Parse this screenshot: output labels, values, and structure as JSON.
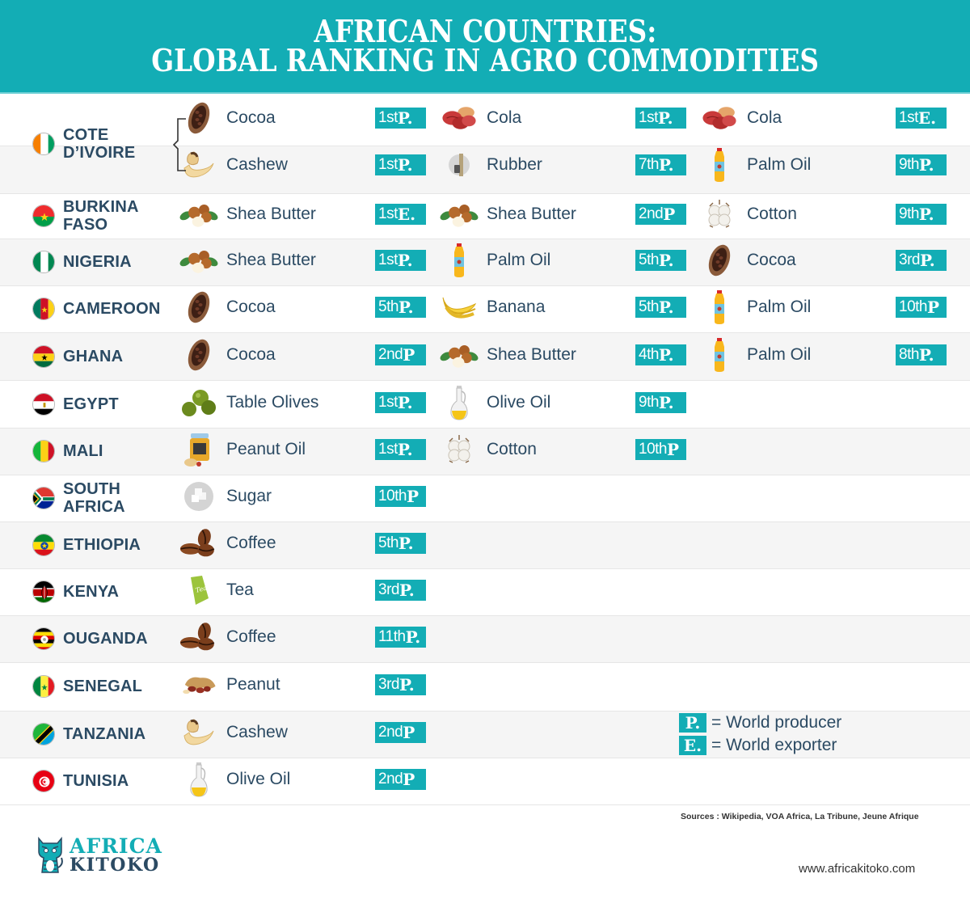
{
  "header": {
    "title_line1": "AFRICAN COUNTRIES:",
    "title_line2": "GLOBAL RANKING IN AGRO COMMODITIES"
  },
  "colors": {
    "accent": "#13adb5",
    "text": "#2b4a63",
    "row_alt": "#f5f5f5"
  },
  "rows": [
    {
      "country": "COTE\nD’IVOIRE",
      "flag": "cote-divoire",
      "items": [
        {
          "name": "Cocoa",
          "icon": "cocoa-pod-icon",
          "rank": "1st",
          "type": "P."
        },
        {
          "name": "Cola",
          "icon": "cola-nut-icon",
          "rank": "1st",
          "type": "P."
        },
        {
          "name": "Cola",
          "icon": "cola-nut-icon",
          "rank": "1st",
          "type": "E."
        },
        {
          "name": "Cashew",
          "icon": "cashew-icon",
          "rank": "1st",
          "type": "P."
        },
        {
          "name": "Rubber",
          "icon": "rubber-tap-icon",
          "rank": "7th",
          "type": "P."
        },
        {
          "name": "Palm Oil",
          "icon": "oil-bottle-icon",
          "rank": "9th",
          "type": "P."
        }
      ]
    },
    {
      "country": "BURKINA\nFASO",
      "flag": "burkina-faso",
      "items": [
        {
          "name": "Shea Butter",
          "icon": "shea-nut-icon",
          "rank": "1st",
          "type": "E."
        },
        {
          "name": "Shea Butter",
          "icon": "shea-nut-icon",
          "rank": "2nd",
          "type": "P"
        },
        {
          "name": "Cotton",
          "icon": "cotton-icon",
          "rank": "9th",
          "type": "P."
        }
      ]
    },
    {
      "country": "NIGERIA",
      "flag": "nigeria",
      "items": [
        {
          "name": "Shea Butter",
          "icon": "shea-nut-icon",
          "rank": "1st",
          "type": "P."
        },
        {
          "name": "Palm Oil",
          "icon": "oil-bottle-icon",
          "rank": "5th",
          "type": "P."
        },
        {
          "name": "Cocoa",
          "icon": "cocoa-pod-icon",
          "rank": "3rd",
          "type": "P."
        }
      ]
    },
    {
      "country": "CAMEROON",
      "flag": "cameroon",
      "items": [
        {
          "name": "Cocoa",
          "icon": "cocoa-pod-icon",
          "rank": "5th",
          "type": "P."
        },
        {
          "name": "Banana",
          "icon": "banana-icon",
          "rank": "5th",
          "type": "P."
        },
        {
          "name": "Palm Oil",
          "icon": "oil-bottle-icon",
          "rank": "10th",
          "type": "P"
        }
      ]
    },
    {
      "country": "GHANA",
      "flag": "ghana",
      "items": [
        {
          "name": "Cocoa",
          "icon": "cocoa-pod-icon",
          "rank": "2nd",
          "type": "P"
        },
        {
          "name": "Shea Butter",
          "icon": "shea-nut-icon",
          "rank": "4th",
          "type": "P."
        },
        {
          "name": "Palm Oil",
          "icon": "oil-bottle-icon",
          "rank": "8th",
          "type": "P."
        }
      ]
    },
    {
      "country": "EGYPT",
      "flag": "egypt",
      "items": [
        {
          "name": "Table Olives",
          "icon": "olives-icon",
          "rank": "1st",
          "type": "P."
        },
        {
          "name": "Olive Oil",
          "icon": "olive-oil-jug-icon",
          "rank": "9th",
          "type": "P."
        }
      ]
    },
    {
      "country": "MALI",
      "flag": "mali",
      "items": [
        {
          "name": "Peanut Oil",
          "icon": "peanut-butter-jar-icon",
          "rank": "1st",
          "type": "P."
        },
        {
          "name": "Cotton",
          "icon": "cotton-icon",
          "rank": "10th",
          "type": "P"
        }
      ]
    },
    {
      "country": "SOUTH\nAFRICA",
      "flag": "south-africa",
      "items": [
        {
          "name": "Sugar",
          "icon": "sugar-icon",
          "rank": "10th",
          "type": "P"
        }
      ]
    },
    {
      "country": "ETHIOPIA",
      "flag": "ethiopia",
      "items": [
        {
          "name": "Coffee",
          "icon": "coffee-beans-icon",
          "rank": "5th",
          "type": "P."
        }
      ]
    },
    {
      "country": "KENYA",
      "flag": "kenya",
      "items": [
        {
          "name": "Tea",
          "icon": "tea-bag-icon",
          "rank": "3rd",
          "type": "P."
        }
      ]
    },
    {
      "country": "OUGANDA",
      "flag": "uganda",
      "items": [
        {
          "name": "Coffee",
          "icon": "coffee-beans-icon",
          "rank": "11th",
          "type": "P."
        }
      ]
    },
    {
      "country": "SENEGAL",
      "flag": "senegal",
      "items": [
        {
          "name": "Peanut",
          "icon": "peanut-icon",
          "rank": "3rd",
          "type": "P."
        }
      ]
    },
    {
      "country": "TANZANIA",
      "flag": "tanzania",
      "items": [
        {
          "name": "Cashew",
          "icon": "cashew-icon",
          "rank": "2nd",
          "type": "P"
        }
      ]
    },
    {
      "country": "TUNISIA",
      "flag": "tunisia",
      "items": [
        {
          "name": "Olive Oil",
          "icon": "olive-oil-jug-icon",
          "rank": "2nd",
          "type": "P"
        }
      ]
    }
  ],
  "legend": [
    {
      "key": "P.",
      "text": "= World producer"
    },
    {
      "key": "E.",
      "text": "= World exporter"
    }
  ],
  "footer": {
    "sources": "Sources : Wikipedia, VOA Africa, La Tribune, Jeune Afrique",
    "website": "www.africakitoko.com",
    "logo_line1": "AFRICA",
    "logo_line2": "KITOKO"
  }
}
